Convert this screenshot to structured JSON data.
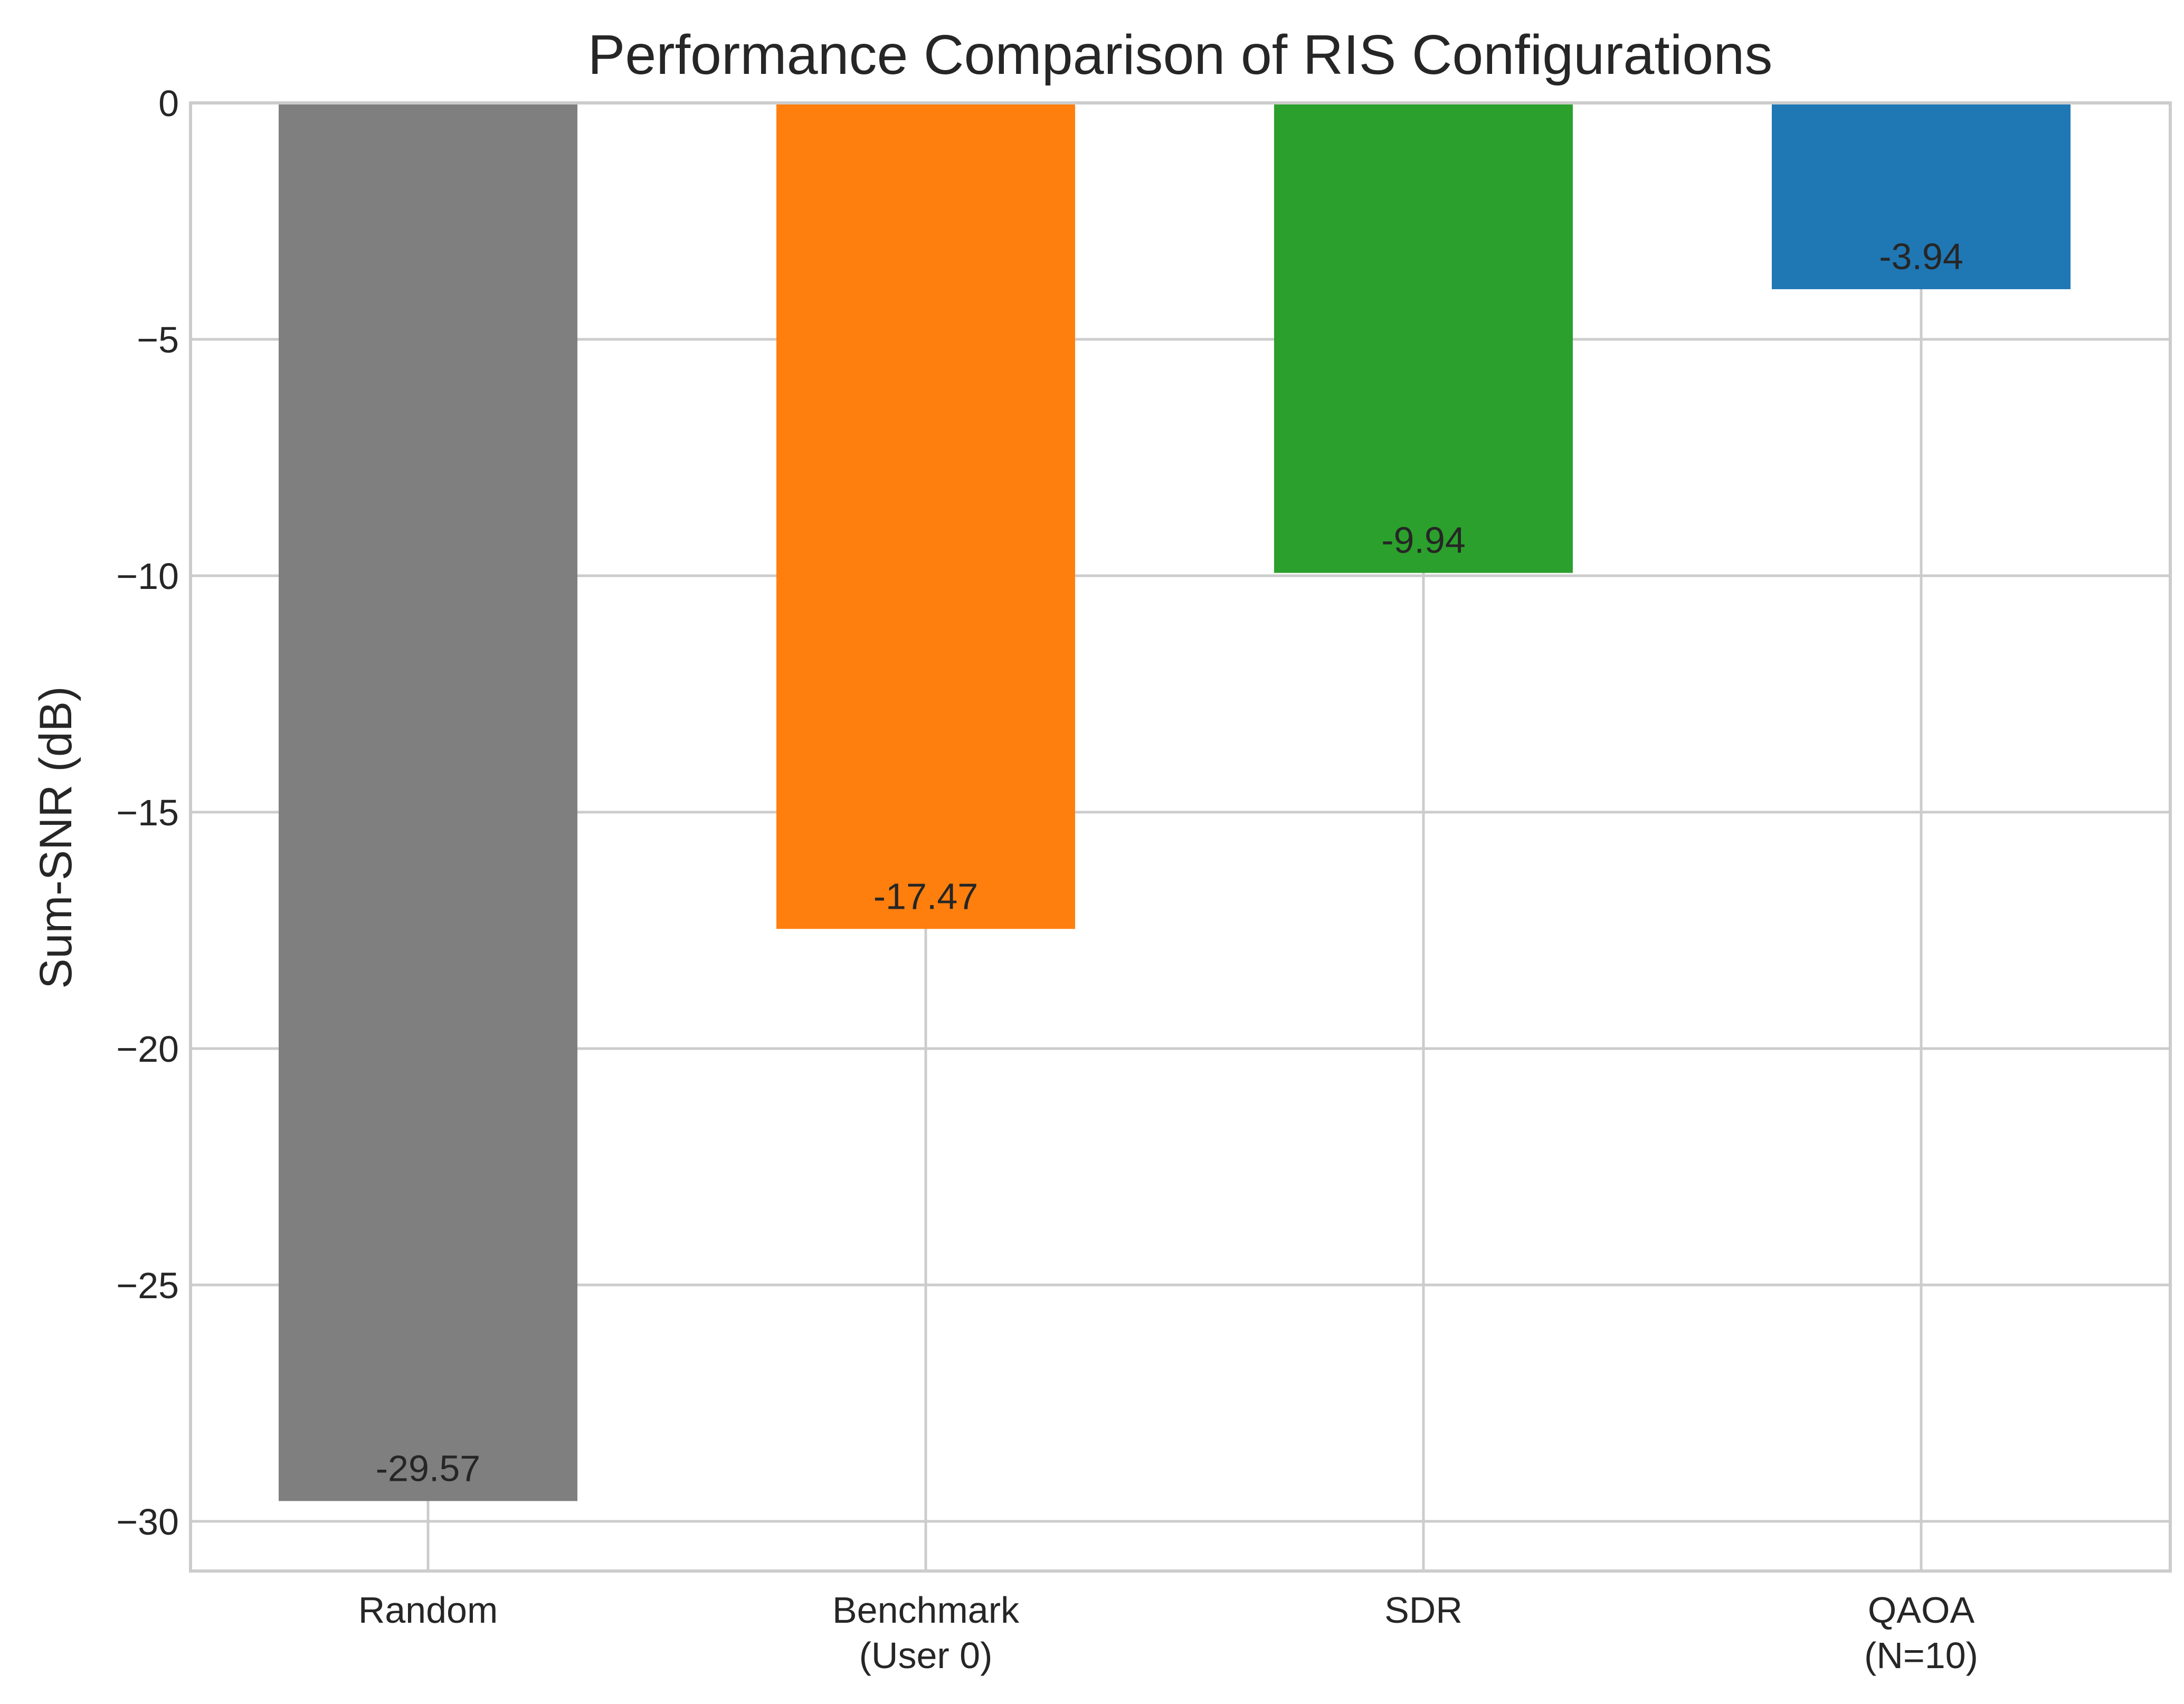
{
  "chart_data": {
    "type": "bar",
    "title": "Performance Comparison of RIS Configurations",
    "xlabel": "",
    "ylabel": "Sum-SNR (dB)",
    "categories": [
      "Random",
      "Benchmark\n(User 0)",
      "SDR",
      "QAOA\n(N=10)"
    ],
    "values": [
      -29.57,
      -17.47,
      -9.94,
      -3.94
    ],
    "value_labels": [
      "-29.57",
      "-17.47",
      "-9.94",
      "-3.94"
    ],
    "colors": [
      "#7f7f7f",
      "#ff7f0e",
      "#2ca02c",
      "#1f77b4"
    ],
    "ylim": [
      -31.05,
      0
    ],
    "yticks": [
      0,
      -5,
      -10,
      -15,
      -20,
      -25,
      -30
    ],
    "ytick_labels": [
      "0",
      "−5",
      "−10",
      "−15",
      "−20",
      "−25",
      "−30"
    ],
    "grid": true,
    "legend": "none"
  }
}
